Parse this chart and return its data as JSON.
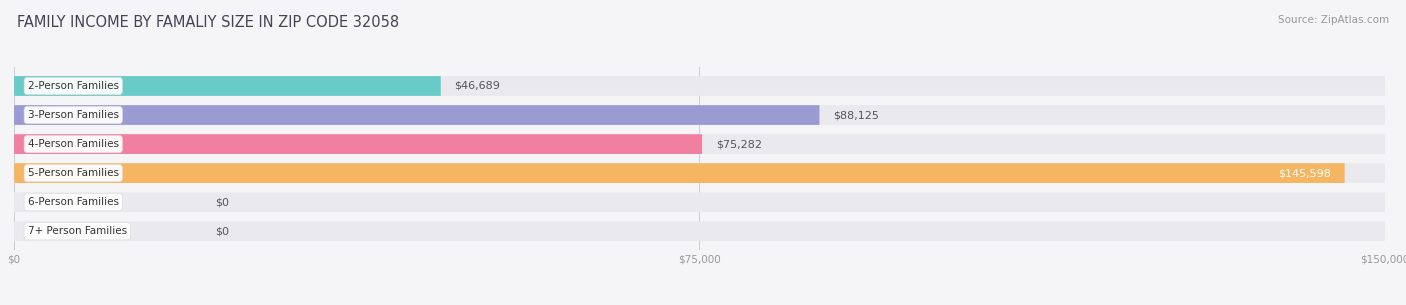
{
  "title": "FAMILY INCOME BY FAMALIY SIZE IN ZIP CODE 32058",
  "source": "Source: ZipAtlas.com",
  "categories": [
    "2-Person Families",
    "3-Person Families",
    "4-Person Families",
    "5-Person Families",
    "6-Person Families",
    "7+ Person Families"
  ],
  "values": [
    46689,
    88125,
    75282,
    145598,
    0,
    0
  ],
  "labels": [
    "$46,689",
    "$88,125",
    "$75,282",
    "$145,598",
    "$0",
    "$0"
  ],
  "bar_colors": [
    "#68cbc8",
    "#9b9bd4",
    "#f07fa0",
    "#f5b563",
    "#f5a8b0",
    "#a8c8e8"
  ],
  "bar_bg_color": "#eaeaee",
  "xlim": [
    0,
    150000
  ],
  "xticks": [
    0,
    75000,
    150000
  ],
  "xticklabels": [
    "$0",
    "$75,000",
    "$150,000"
  ],
  "title_fontsize": 10.5,
  "source_fontsize": 7.5,
  "label_fontsize": 8,
  "category_fontsize": 7.5,
  "background_color": "#f5f5f8",
  "label_inside_threshold": 0.92
}
